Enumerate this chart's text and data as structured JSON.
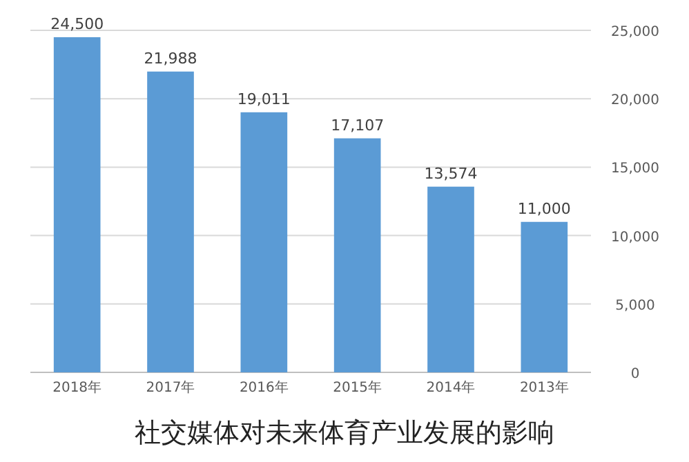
{
  "chart_data": {
    "type": "bar",
    "title": "社交媒体对未来体育产业发展的影响",
    "categories": [
      "2018年",
      "2017年",
      "2016年",
      "2015年",
      "2014年",
      "2013年"
    ],
    "values": [
      24500,
      21988,
      19011,
      17107,
      13574,
      11000
    ],
    "value_labels": [
      "24,500",
      "21,988",
      "19,011",
      "17,107",
      "13,574",
      "11,000"
    ],
    "color": "#5b9bd5",
    "ylim": [
      0,
      25000
    ],
    "yticks": [
      {
        "value": 0,
        "label": "0"
      },
      {
        "value": 5000,
        "label": "5,000"
      },
      {
        "value": 10000,
        "label": "10,000"
      },
      {
        "value": 15000,
        "label": "15,000"
      },
      {
        "value": 20000,
        "label": "20,000"
      },
      {
        "value": 25000,
        "label": "25,000"
      }
    ],
    "grid": "y"
  }
}
